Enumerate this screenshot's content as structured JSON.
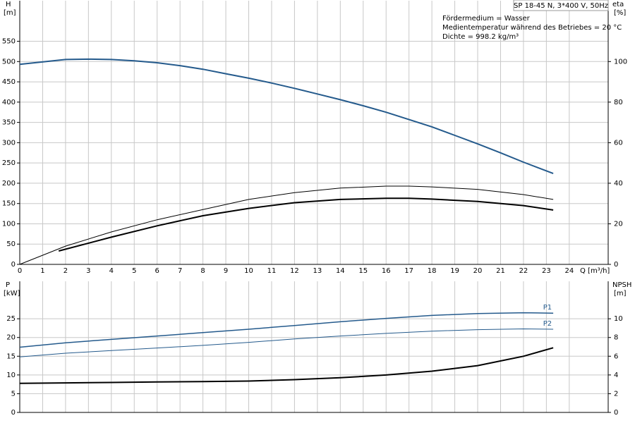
{
  "chart_data": [
    {
      "type": "line",
      "title": "SP 18-45 N, 3*400 V, 50Hz",
      "notes": [
        "Fördermedium = Wasser",
        "Medientemperatur während des Betriebes = 20 °C",
        "Dichte = 998.2 kg/m³"
      ],
      "y_label": "H",
      "y_unit": "[m]",
      "y2_label": "eta",
      "y2_unit": "[%]",
      "x_label": "Q [m³/h]",
      "xlim": [
        0,
        25.7
      ],
      "xticks": [
        0,
        1,
        2,
        3,
        4,
        5,
        6,
        7,
        8,
        9,
        10,
        11,
        12,
        13,
        14,
        15,
        16,
        17,
        18,
        19,
        20,
        21,
        22,
        23,
        24
      ],
      "ylim": [
        0,
        650
      ],
      "yticks": [
        0,
        50,
        100,
        150,
        200,
        250,
        300,
        350,
        400,
        450,
        500,
        550
      ],
      "y2lim": [
        0,
        130
      ],
      "y2ticks": [
        0,
        20,
        40,
        60,
        80,
        100
      ],
      "grid": true,
      "series": [
        {
          "color": "#245a8c",
          "line_width": 2,
          "axis": "y",
          "x": [
            0,
            2,
            3,
            4,
            5,
            6,
            7,
            8,
            9,
            10,
            11,
            12,
            13,
            14,
            15,
            16,
            17,
            18,
            19,
            20,
            21,
            22,
            23.3
          ],
          "values": [
            493,
            505,
            506,
            505,
            502,
            497,
            490,
            481,
            470,
            459,
            447,
            434,
            420,
            406,
            391,
            375,
            357,
            339,
            318,
            297,
            275,
            252,
            224
          ]
        },
        {
          "color": "#000000",
          "line_width": 1,
          "axis": "y2",
          "x": [
            0,
            2,
            4,
            6,
            8,
            10,
            12,
            14,
            16,
            17,
            18,
            20,
            22,
            23.3
          ],
          "values": [
            0,
            9,
            16,
            22,
            27,
            32,
            35.4,
            37.6,
            38.6,
            38.6,
            38.2,
            37,
            34.4,
            32
          ]
        },
        {
          "color": "#000000",
          "line_width": 2,
          "axis": "y2",
          "x": [
            1.7,
            4,
            6,
            8,
            10,
            12,
            14,
            16,
            17,
            18,
            20,
            22,
            23.3
          ],
          "values": [
            6.6,
            13.4,
            19,
            24,
            27.6,
            30.4,
            32,
            32.6,
            32.6,
            32.2,
            31,
            29,
            26.8
          ]
        }
      ]
    },
    {
      "type": "line",
      "y_label": "P",
      "y_unit": "[kW]",
      "y2_label": "NPSH",
      "y2_unit": "[m]",
      "xlim": [
        0,
        25.7
      ],
      "xticks": [
        0,
        1,
        2,
        3,
        4,
        5,
        6,
        7,
        8,
        9,
        10,
        11,
        12,
        13,
        14,
        15,
        16,
        17,
        18,
        19,
        20,
        21,
        22,
        23,
        24
      ],
      "ylim": [
        0,
        35
      ],
      "yticks": [
        0,
        5,
        10,
        15,
        20,
        25
      ],
      "y2lim": [
        0,
        14
      ],
      "y2ticks": [
        0,
        2,
        4,
        6,
        8,
        10
      ],
      "grid": true,
      "series": [
        {
          "name": "P1",
          "color": "#245a8c",
          "line_width": 1.5,
          "axis": "y",
          "x": [
            0,
            2,
            4,
            6,
            8,
            10,
            12,
            14,
            16,
            18,
            20,
            22,
            23.3
          ],
          "values": [
            17.4,
            18.6,
            19.5,
            20.4,
            21.3,
            22.2,
            23.2,
            24.2,
            25.1,
            25.9,
            26.4,
            26.6,
            26.5
          ]
        },
        {
          "name": "P2",
          "color": "#245a8c",
          "line_width": 1,
          "axis": "y",
          "x": [
            0,
            2,
            4,
            6,
            8,
            10,
            12,
            14,
            16,
            18,
            20,
            22,
            23.3
          ],
          "values": [
            14.8,
            15.8,
            16.5,
            17.2,
            17.9,
            18.7,
            19.6,
            20.4,
            21.1,
            21.7,
            22.1,
            22.3,
            22.2
          ]
        },
        {
          "color": "#000000",
          "line_width": 2,
          "axis": "y2",
          "x": [
            0,
            2,
            4,
            6,
            8,
            10,
            12,
            14,
            16,
            18,
            20,
            22,
            23.3
          ],
          "values": [
            3.1,
            3.15,
            3.2,
            3.25,
            3.3,
            3.35,
            3.5,
            3.7,
            4.0,
            4.4,
            5.0,
            6.0,
            6.9
          ]
        }
      ]
    }
  ]
}
